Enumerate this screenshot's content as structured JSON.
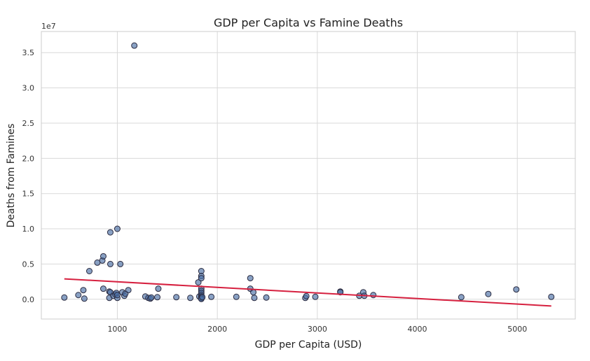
{
  "chart_data": {
    "type": "scatter",
    "title": "GDP per Capita vs Famine Deaths",
    "xlabel": "GDP per Capita (USD)",
    "ylabel": "Deaths from Famines",
    "y_offset_label": "1e7",
    "xlim": [
      240,
      5580
    ],
    "ylim": [
      -2800000,
      38000000
    ],
    "x_ticks": [
      1000,
      2000,
      3000,
      4000,
      5000
    ],
    "x_tick_labels": [
      "1000",
      "2000",
      "3000",
      "4000",
      "5000"
    ],
    "y_ticks": [
      0,
      5000000,
      10000000,
      15000000,
      20000000,
      25000000,
      30000000,
      35000000
    ],
    "y_tick_labels": [
      "0.0",
      "0.5",
      "1.0",
      "1.5",
      "2.0",
      "2.5",
      "3.0",
      "3.5"
    ],
    "grid": true,
    "colors": {
      "points": "#4a6fa5",
      "point_edge": "#2b2b40",
      "trend": "#d6203f",
      "grid": "#d9d9d9",
      "frame": "#cccccc"
    },
    "series": [
      {
        "values": [
          [
            470,
            250000
          ],
          [
            610,
            600000
          ],
          [
            660,
            1300000
          ],
          [
            670,
            100000
          ],
          [
            720,
            4000000
          ],
          [
            800,
            5200000
          ],
          [
            850,
            5500000
          ],
          [
            860,
            6100000
          ],
          [
            860,
            1500000
          ],
          [
            920,
            200000
          ],
          [
            920,
            1100000
          ],
          [
            930,
            1000000
          ],
          [
            930,
            9500000
          ],
          [
            930,
            5000000
          ],
          [
            960,
            500000
          ],
          [
            980,
            700000
          ],
          [
            990,
            900000
          ],
          [
            1000,
            200000
          ],
          [
            1000,
            10000000
          ],
          [
            1000,
            600000
          ],
          [
            1030,
            5000000
          ],
          [
            1050,
            1000000
          ],
          [
            1070,
            500000
          ],
          [
            1080,
            800000
          ],
          [
            1110,
            1300000
          ],
          [
            1170,
            36000000
          ],
          [
            1280,
            400000
          ],
          [
            1310,
            200000
          ],
          [
            1330,
            100000
          ],
          [
            1340,
            250000
          ],
          [
            1400,
            300000
          ],
          [
            1410,
            1500000
          ],
          [
            1590,
            300000
          ],
          [
            1730,
            200000
          ],
          [
            1810,
            2400000
          ],
          [
            1820,
            400000
          ],
          [
            1840,
            4000000
          ],
          [
            1840,
            3300000
          ],
          [
            1840,
            3000000
          ],
          [
            1840,
            1500000
          ],
          [
            1840,
            1200000
          ],
          [
            1840,
            900000
          ],
          [
            1840,
            600000
          ],
          [
            1840,
            400000
          ],
          [
            1840,
            250000
          ],
          [
            1840,
            150000
          ],
          [
            1840,
            50000
          ],
          [
            1850,
            300000
          ],
          [
            1940,
            350000
          ],
          [
            2190,
            350000
          ],
          [
            2330,
            3000000
          ],
          [
            2330,
            1500000
          ],
          [
            2360,
            1000000
          ],
          [
            2370,
            200000
          ],
          [
            2490,
            250000
          ],
          [
            2880,
            200000
          ],
          [
            2890,
            450000
          ],
          [
            2980,
            350000
          ],
          [
            3230,
            1100000
          ],
          [
            3230,
            1000000
          ],
          [
            3420,
            500000
          ],
          [
            3460,
            1000000
          ],
          [
            3470,
            500000
          ],
          [
            3560,
            600000
          ],
          [
            4440,
            300000
          ],
          [
            4710,
            750000
          ],
          [
            4990,
            1400000
          ],
          [
            5340,
            350000
          ]
        ]
      }
    ],
    "trendline": {
      "x": [
        470,
        5340
      ],
      "y": [
        2900000,
        -950000
      ]
    }
  }
}
